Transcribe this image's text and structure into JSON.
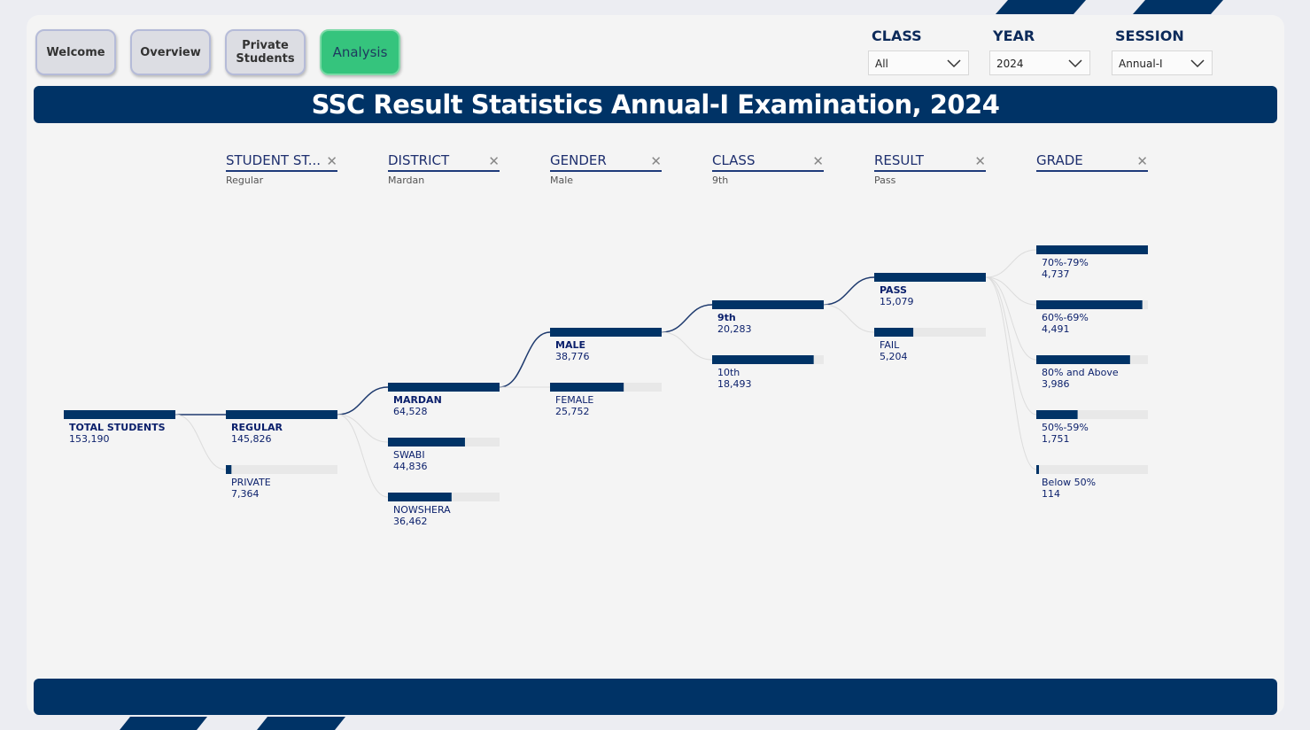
{
  "nav": {
    "welcome": "Welcome",
    "overview": "Overview",
    "private_line1": "Private",
    "private_line2": "Students",
    "analysis": "Analysis"
  },
  "filters": {
    "class": {
      "label": "CLASS",
      "value": "All"
    },
    "year": {
      "label": "YEAR",
      "value": "2024"
    },
    "session": {
      "label": "SESSION",
      "value": "Annual-I"
    }
  },
  "title": "SSC Result Statistics Annual-I Examination, 2024",
  "colors": {
    "primary": "#003366",
    "accent": "#35c47d",
    "track": "#e8e8e8"
  },
  "tree": {
    "root": {
      "label": "TOTAL STUDENTS",
      "value": "153,190",
      "fraction": 1.0
    },
    "levels": [
      {
        "header": "STUDENT ST...",
        "selected": "Regular",
        "nodes": [
          {
            "label": "REGULAR",
            "value": "145,826",
            "fraction": 1.0,
            "active": true
          },
          {
            "label": "PRIVATE",
            "value": "7,364",
            "fraction": 0.05,
            "active": false
          }
        ]
      },
      {
        "header": "DISTRICT",
        "selected": "Mardan",
        "nodes": [
          {
            "label": "MARDAN",
            "value": "64,528",
            "fraction": 1.0,
            "active": true
          },
          {
            "label": "SWABI",
            "value": "44,836",
            "fraction": 0.69,
            "active": false
          },
          {
            "label": "NOWSHERA",
            "value": "36,462",
            "fraction": 0.57,
            "active": false
          }
        ]
      },
      {
        "header": "GENDER",
        "selected": "Male",
        "nodes": [
          {
            "label": "MALE",
            "value": "38,776",
            "fraction": 1.0,
            "active": true
          },
          {
            "label": "FEMALE",
            "value": "25,752",
            "fraction": 0.66,
            "active": false
          }
        ]
      },
      {
        "header": "CLASS",
        "selected": "9th",
        "nodes": [
          {
            "label": "9th",
            "value": "20,283",
            "fraction": 1.0,
            "active": true
          },
          {
            "label": "10th",
            "value": "18,493",
            "fraction": 0.91,
            "active": false
          }
        ]
      },
      {
        "header": "RESULT",
        "selected": "Pass",
        "nodes": [
          {
            "label": "PASS",
            "value": "15,079",
            "fraction": 1.0,
            "active": true
          },
          {
            "label": "FAIL",
            "value": "5,204",
            "fraction": 0.35,
            "active": false
          }
        ]
      },
      {
        "header": "GRADE",
        "selected": "",
        "nodes": [
          {
            "label": "70%-79%",
            "value": "4,737",
            "fraction": 1.0,
            "active": false
          },
          {
            "label": "60%-69%",
            "value": "4,491",
            "fraction": 0.95,
            "active": false
          },
          {
            "label": "80% and Above",
            "value": "3,986",
            "fraction": 0.84,
            "active": false
          },
          {
            "label": "50%-59%",
            "value": "1,751",
            "fraction": 0.37,
            "active": false
          },
          {
            "label": "Below 50%",
            "value": "114",
            "fraction": 0.02,
            "active": false
          }
        ]
      }
    ]
  }
}
